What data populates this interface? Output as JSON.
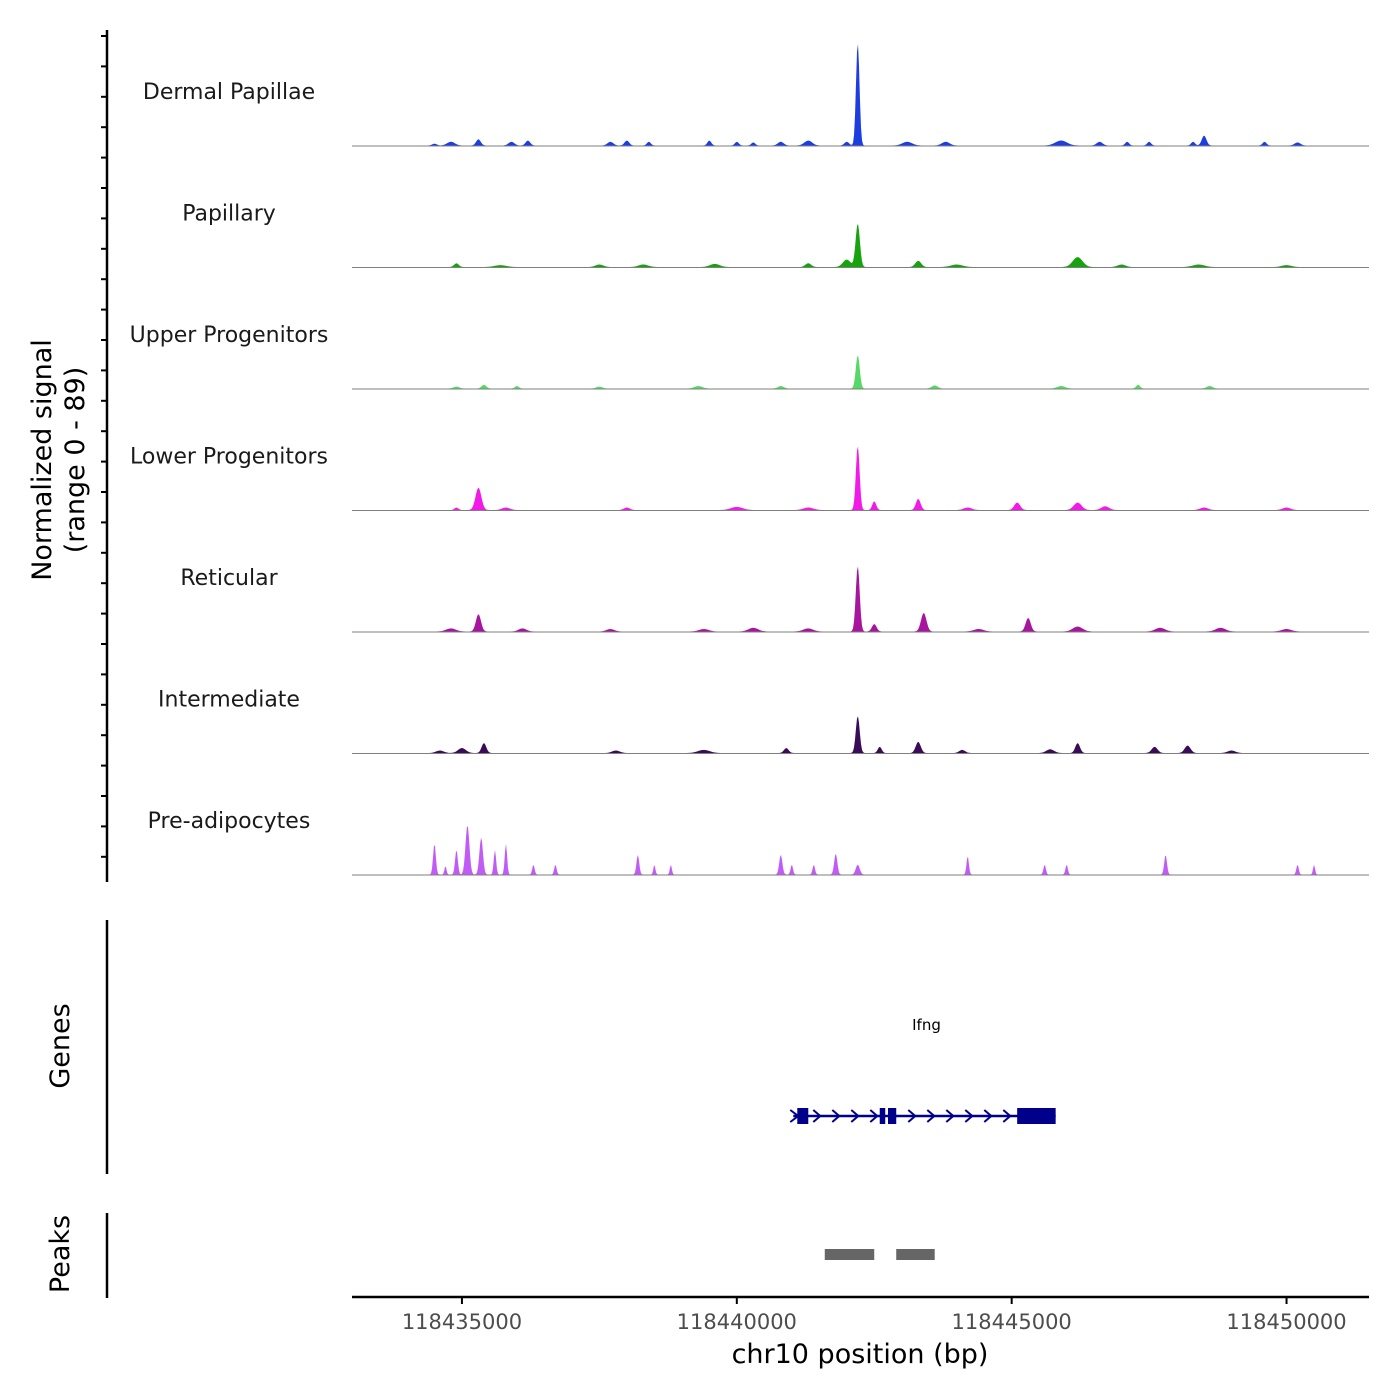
{
  "chart_data": {
    "type": "area",
    "title": "",
    "ylabel_line1": "Normalized signal",
    "ylabel_line2": "(range 0 - 89)",
    "xlabel": "chr10 position (bp)",
    "xlim": [
      118433000,
      118451500
    ],
    "xticks": [
      118435000,
      118440000,
      118445000,
      118450000
    ],
    "xtick_labels": [
      "118435000",
      "118440000",
      "118445000",
      "118450000"
    ],
    "ylim": [
      0,
      89
    ],
    "tracks": [
      {
        "name": "Dermal Papillae",
        "color": "#1c3ee0",
        "peaks": [
          {
            "pos": 118434500,
            "height": 1.5,
            "width": 120
          },
          {
            "pos": 118434800,
            "height": 3,
            "width": 200
          },
          {
            "pos": 118435300,
            "height": 5,
            "width": 120
          },
          {
            "pos": 118435900,
            "height": 3,
            "width": 150
          },
          {
            "pos": 118436200,
            "height": 4,
            "width": 120
          },
          {
            "pos": 118437700,
            "height": 3,
            "width": 150
          },
          {
            "pos": 118438000,
            "height": 4,
            "width": 120
          },
          {
            "pos": 118438400,
            "height": 3,
            "width": 100
          },
          {
            "pos": 118439500,
            "height": 4,
            "width": 100
          },
          {
            "pos": 118440000,
            "height": 3,
            "width": 100
          },
          {
            "pos": 118440300,
            "height": 2.5,
            "width": 100
          },
          {
            "pos": 118440800,
            "height": 3,
            "width": 150
          },
          {
            "pos": 118441300,
            "height": 4,
            "width": 200
          },
          {
            "pos": 118442000,
            "height": 3,
            "width": 120
          },
          {
            "pos": 118442200,
            "height": 83,
            "width": 90
          },
          {
            "pos": 118443100,
            "height": 3,
            "width": 250
          },
          {
            "pos": 118443800,
            "height": 3,
            "width": 200
          },
          {
            "pos": 118445900,
            "height": 4,
            "width": 300
          },
          {
            "pos": 118446600,
            "height": 3,
            "width": 150
          },
          {
            "pos": 118447100,
            "height": 3,
            "width": 100
          },
          {
            "pos": 118447500,
            "height": 3,
            "width": 100
          },
          {
            "pos": 118448500,
            "height": 8,
            "width": 120
          },
          {
            "pos": 118448300,
            "height": 3,
            "width": 100
          },
          {
            "pos": 118449600,
            "height": 3,
            "width": 100
          },
          {
            "pos": 118450200,
            "height": 2.5,
            "width": 150
          }
        ]
      },
      {
        "name": "Papillary",
        "color": "#16a30e",
        "peaks": [
          {
            "pos": 118434900,
            "height": 3,
            "width": 120
          },
          {
            "pos": 118435700,
            "height": 1.5,
            "width": 300
          },
          {
            "pos": 118437500,
            "height": 2,
            "width": 200
          },
          {
            "pos": 118438300,
            "height": 2,
            "width": 250
          },
          {
            "pos": 118439600,
            "height": 2.5,
            "width": 250
          },
          {
            "pos": 118441300,
            "height": 3,
            "width": 150
          },
          {
            "pos": 118442200,
            "height": 35,
            "width": 110
          },
          {
            "pos": 118442000,
            "height": 6,
            "width": 200
          },
          {
            "pos": 118443300,
            "height": 5,
            "width": 150
          },
          {
            "pos": 118444000,
            "height": 2,
            "width": 300
          },
          {
            "pos": 118446200,
            "height": 8,
            "width": 250
          },
          {
            "pos": 118447000,
            "height": 2,
            "width": 200
          },
          {
            "pos": 118448400,
            "height": 2,
            "width": 300
          },
          {
            "pos": 118450000,
            "height": 1.5,
            "width": 250
          }
        ]
      },
      {
        "name": "Upper Progenitors",
        "color": "#55d866",
        "peaks": [
          {
            "pos": 118434900,
            "height": 1.5,
            "width": 150
          },
          {
            "pos": 118435400,
            "height": 3,
            "width": 120
          },
          {
            "pos": 118436000,
            "height": 2,
            "width": 100
          },
          {
            "pos": 118437500,
            "height": 1.5,
            "width": 150
          },
          {
            "pos": 118439300,
            "height": 2,
            "width": 200
          },
          {
            "pos": 118440800,
            "height": 2,
            "width": 150
          },
          {
            "pos": 118442200,
            "height": 27,
            "width": 100
          },
          {
            "pos": 118443600,
            "height": 2.5,
            "width": 150
          },
          {
            "pos": 118445900,
            "height": 2,
            "width": 200
          },
          {
            "pos": 118447300,
            "height": 3,
            "width": 100
          },
          {
            "pos": 118448600,
            "height": 2,
            "width": 150
          }
        ]
      },
      {
        "name": "Lower Progenitors",
        "color": "#f21ae6",
        "peaks": [
          {
            "pos": 118434900,
            "height": 2,
            "width": 100
          },
          {
            "pos": 118435300,
            "height": 18,
            "width": 150
          },
          {
            "pos": 118435800,
            "height": 2,
            "width": 200
          },
          {
            "pos": 118438000,
            "height": 2,
            "width": 150
          },
          {
            "pos": 118440000,
            "height": 2.5,
            "width": 300
          },
          {
            "pos": 118441300,
            "height": 2,
            "width": 250
          },
          {
            "pos": 118442200,
            "height": 52,
            "width": 95
          },
          {
            "pos": 118442500,
            "height": 7,
            "width": 100
          },
          {
            "pos": 118443300,
            "height": 9,
            "width": 120
          },
          {
            "pos": 118444200,
            "height": 2,
            "width": 200
          },
          {
            "pos": 118445100,
            "height": 6,
            "width": 150
          },
          {
            "pos": 118446200,
            "height": 6,
            "width": 200
          },
          {
            "pos": 118446700,
            "height": 3,
            "width": 200
          },
          {
            "pos": 118448500,
            "height": 2,
            "width": 200
          },
          {
            "pos": 118450000,
            "height": 2,
            "width": 200
          }
        ]
      },
      {
        "name": "Reticular",
        "color": "#a7159f",
        "peaks": [
          {
            "pos": 118434800,
            "height": 2.5,
            "width": 250
          },
          {
            "pos": 118435300,
            "height": 14,
            "width": 130
          },
          {
            "pos": 118436100,
            "height": 2.5,
            "width": 200
          },
          {
            "pos": 118437700,
            "height": 2,
            "width": 200
          },
          {
            "pos": 118439400,
            "height": 2,
            "width": 250
          },
          {
            "pos": 118440300,
            "height": 3,
            "width": 250
          },
          {
            "pos": 118441300,
            "height": 2.5,
            "width": 250
          },
          {
            "pos": 118442200,
            "height": 53,
            "width": 100
          },
          {
            "pos": 118442500,
            "height": 6,
            "width": 120
          },
          {
            "pos": 118443400,
            "height": 15,
            "width": 140
          },
          {
            "pos": 118444400,
            "height": 2,
            "width": 250
          },
          {
            "pos": 118445300,
            "height": 11,
            "width": 130
          },
          {
            "pos": 118446200,
            "height": 4,
            "width": 250
          },
          {
            "pos": 118447700,
            "height": 3,
            "width": 250
          },
          {
            "pos": 118448800,
            "height": 3,
            "width": 250
          },
          {
            "pos": 118450000,
            "height": 2,
            "width": 250
          }
        ]
      },
      {
        "name": "Intermediate",
        "color": "#3a0b56",
        "peaks": [
          {
            "pos": 118434600,
            "height": 2,
            "width": 200
          },
          {
            "pos": 118435000,
            "height": 4,
            "width": 200
          },
          {
            "pos": 118435400,
            "height": 8,
            "width": 120
          },
          {
            "pos": 118437800,
            "height": 2,
            "width": 200
          },
          {
            "pos": 118439400,
            "height": 2.5,
            "width": 300
          },
          {
            "pos": 118440900,
            "height": 4,
            "width": 120
          },
          {
            "pos": 118442200,
            "height": 30,
            "width": 100
          },
          {
            "pos": 118442600,
            "height": 5,
            "width": 100
          },
          {
            "pos": 118443300,
            "height": 9,
            "width": 130
          },
          {
            "pos": 118444100,
            "height": 2.5,
            "width": 150
          },
          {
            "pos": 118445700,
            "height": 3,
            "width": 200
          },
          {
            "pos": 118446200,
            "height": 8,
            "width": 120
          },
          {
            "pos": 118447600,
            "height": 5,
            "width": 150
          },
          {
            "pos": 118448200,
            "height": 6,
            "width": 150
          },
          {
            "pos": 118449000,
            "height": 2,
            "width": 200
          }
        ]
      },
      {
        "name": "Pre-adipocytes",
        "color": "#c05cf5",
        "peaks": [
          {
            "pos": 118434500,
            "height": 25,
            "width": 70
          },
          {
            "pos": 118434700,
            "height": 7,
            "width": 50
          },
          {
            "pos": 118434900,
            "height": 20,
            "width": 70
          },
          {
            "pos": 118435100,
            "height": 40,
            "width": 100
          },
          {
            "pos": 118435350,
            "height": 30,
            "width": 90
          },
          {
            "pos": 118435600,
            "height": 20,
            "width": 60
          },
          {
            "pos": 118435800,
            "height": 25,
            "width": 60
          },
          {
            "pos": 118436300,
            "height": 8,
            "width": 60
          },
          {
            "pos": 118436700,
            "height": 8,
            "width": 60
          },
          {
            "pos": 118438200,
            "height": 16,
            "width": 70
          },
          {
            "pos": 118438500,
            "height": 8,
            "width": 50
          },
          {
            "pos": 118438800,
            "height": 8,
            "width": 50
          },
          {
            "pos": 118440800,
            "height": 16,
            "width": 80
          },
          {
            "pos": 118441000,
            "height": 8,
            "width": 60
          },
          {
            "pos": 118441400,
            "height": 8,
            "width": 60
          },
          {
            "pos": 118441800,
            "height": 17,
            "width": 80
          },
          {
            "pos": 118442200,
            "height": 8,
            "width": 100
          },
          {
            "pos": 118444200,
            "height": 15,
            "width": 60
          },
          {
            "pos": 118445600,
            "height": 8,
            "width": 60
          },
          {
            "pos": 118446000,
            "height": 8,
            "width": 60
          },
          {
            "pos": 118447800,
            "height": 16,
            "width": 70
          },
          {
            "pos": 118450200,
            "height": 8,
            "width": 60
          },
          {
            "pos": 118450500,
            "height": 8,
            "width": 50
          }
        ]
      }
    ],
    "genes_panel": {
      "title": "Genes",
      "gene": {
        "name": "Ifng",
        "start": 118441100,
        "end": 118445800,
        "strand": "+",
        "color": "#00008b",
        "exons": [
          {
            "start": 118441100,
            "end": 118441300
          },
          {
            "start": 118442600,
            "end": 118442700
          },
          {
            "start": 118442750,
            "end": 118442900
          },
          {
            "start": 118445100,
            "end": 118445800
          }
        ]
      }
    },
    "peaks_panel": {
      "title": "Peaks",
      "color": "#666666",
      "regions": [
        {
          "start": 118441600,
          "end": 118442500
        },
        {
          "start": 118442900,
          "end": 118443600
        }
      ]
    }
  }
}
